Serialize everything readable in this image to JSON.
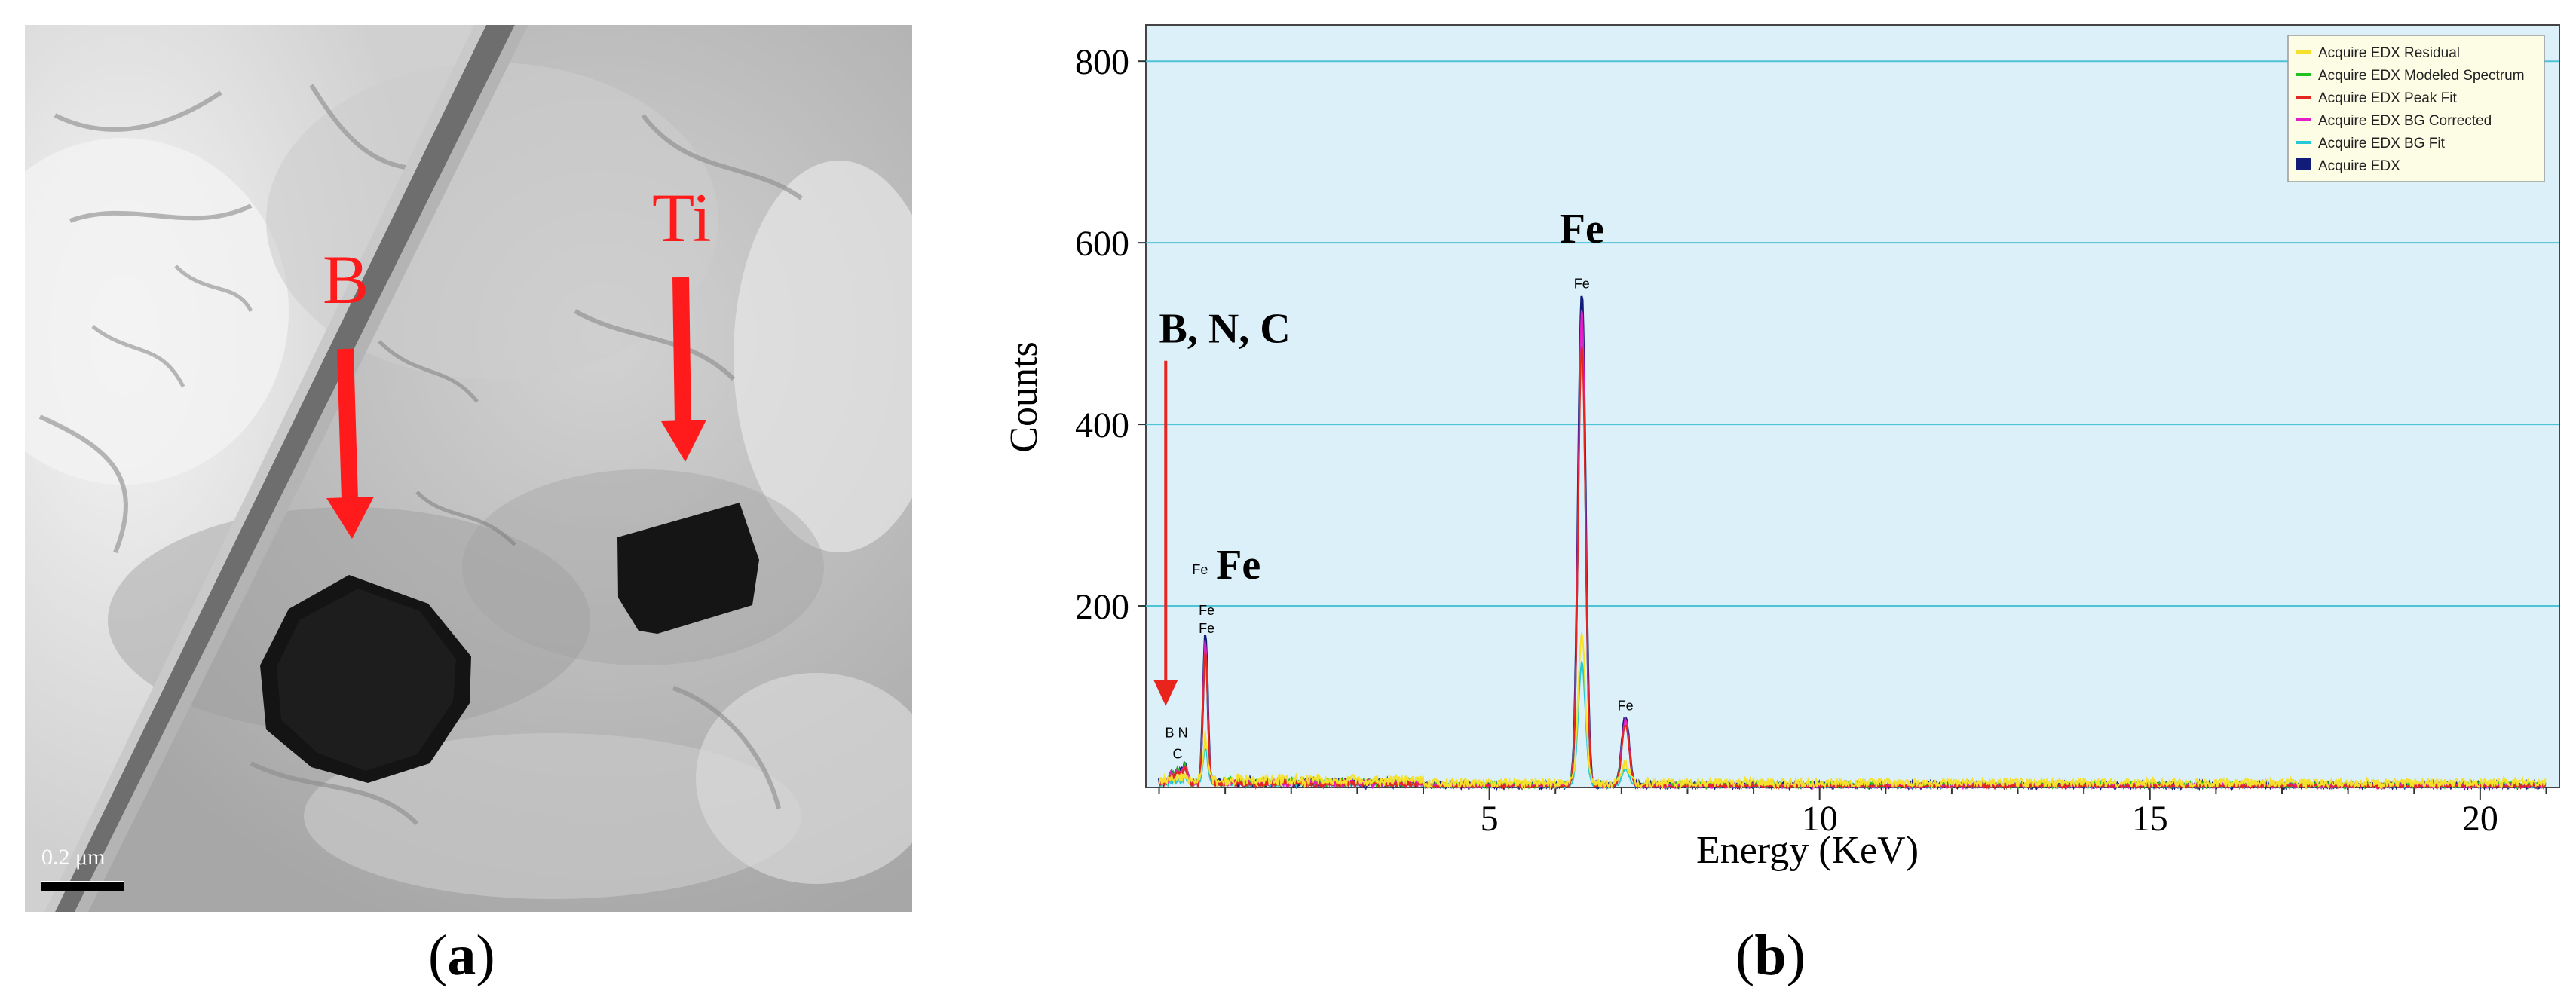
{
  "panel_a": {
    "label_b": "B",
    "label_ti": "Ti",
    "scale_text": "0.2 μm",
    "caption_letter": "a"
  },
  "panel_b": {
    "caption_letter": "b"
  },
  "chart_data": {
    "type": "line",
    "xlabel": "Energy (KeV)",
    "ylabel": "Counts",
    "xlim": [
      -0.2,
      21.2
    ],
    "ylim": [
      0,
      840
    ],
    "xticks": [
      5,
      10,
      15,
      20
    ],
    "yticks": [
      200,
      400,
      600,
      800
    ],
    "grid": "horizontal",
    "background_color": "#dbf0f8",
    "grid_color": "#4fc3d6",
    "legend_position": "top-right",
    "legend": [
      {
        "name": "Acquire EDX Residual",
        "color": "#f5e12b"
      },
      {
        "name": "Acquire EDX Modeled Spectrum",
        "color": "#22c122"
      },
      {
        "name": "Acquire EDX Peak Fit",
        "color": "#e3261f"
      },
      {
        "name": "Acquire EDX BG Corrected",
        "color": "#e21fc7"
      },
      {
        "name": "Acquire EDX BG Fit",
        "color": "#25c9d4"
      },
      {
        "name": "Acquire EDX",
        "color": "#111b78"
      }
    ],
    "peaks": [
      {
        "element": "B",
        "energy": 0.18,
        "counts": 10
      },
      {
        "element": "C",
        "energy": 0.28,
        "counts": 14
      },
      {
        "element": "N",
        "energy": 0.39,
        "counts": 20
      },
      {
        "element": "Fe",
        "energy": 0.7,
        "counts": 160
      },
      {
        "element": "Fe",
        "energy": 6.4,
        "counts": 540
      },
      {
        "element": "Fe",
        "energy": 7.06,
        "counts": 75
      }
    ],
    "peak_labels": [
      {
        "text": "B",
        "energy": 0.16,
        "counts": 55
      },
      {
        "text": "N",
        "energy": 0.36,
        "counts": 55
      },
      {
        "text": "C",
        "energy": 0.28,
        "counts": 32
      },
      {
        "text": "Fe",
        "energy": 0.62,
        "counts": 235
      },
      {
        "text": "Fe",
        "energy": 0.72,
        "counts": 190
      },
      {
        "text": "Fe",
        "energy": 0.72,
        "counts": 170
      },
      {
        "text": "Fe",
        "energy": 6.4,
        "counts": 550
      },
      {
        "text": "Fe",
        "energy": 7.06,
        "counts": 85
      }
    ],
    "annotations": [
      {
        "text": "Fe",
        "energy": 6.4,
        "counts": 600,
        "bold": true
      },
      {
        "text": "Fe",
        "energy": 1.2,
        "counts": 230,
        "bold": true
      },
      {
        "text": "B, N, C",
        "energy": 0.0,
        "counts": 490,
        "bold": true
      }
    ],
    "arrow": {
      "energy": 0.1,
      "from_counts": 470,
      "to_counts": 90,
      "color": "#e8241c"
    }
  }
}
